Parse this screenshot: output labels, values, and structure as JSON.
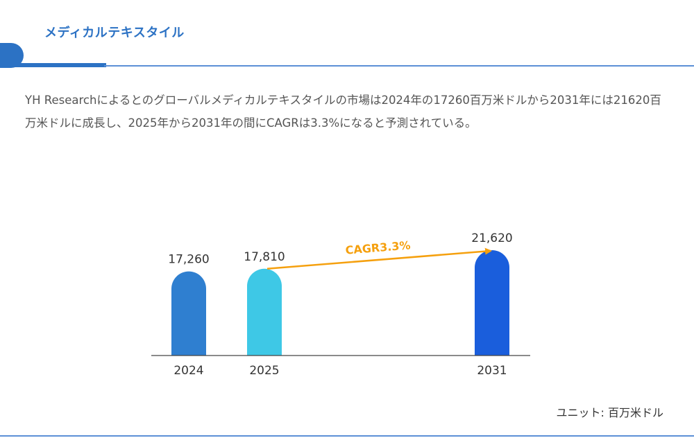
{
  "header": {
    "title": "メディカルテキスタイル"
  },
  "description": "YH Researchによるとのグローバルメディカルテキスタイルの市場は2024年の17260百万米ドルから2031年には21620百万米ドルに成長し、2025年から2031年の間にCAGRは3.3%になると予測されている。",
  "unit_label": "ユニット: 百万米ドル",
  "chart_data": {
    "type": "bar",
    "categories": [
      "2024",
      "2025",
      "2031"
    ],
    "values": [
      17260,
      17810,
      21620
    ],
    "value_labels": [
      "17,260",
      "17,810",
      "21,620"
    ],
    "colors": [
      "#2f7fd0",
      "#3ec8e6",
      "#1a5edc"
    ],
    "annotation": {
      "text": "CAGR3.3%",
      "from": "2025",
      "to": "2031",
      "color": "#f5a00e"
    },
    "title": "",
    "xlabel": "",
    "ylabel": "",
    "ylim": [
      0,
      21620
    ],
    "grid": false
  }
}
